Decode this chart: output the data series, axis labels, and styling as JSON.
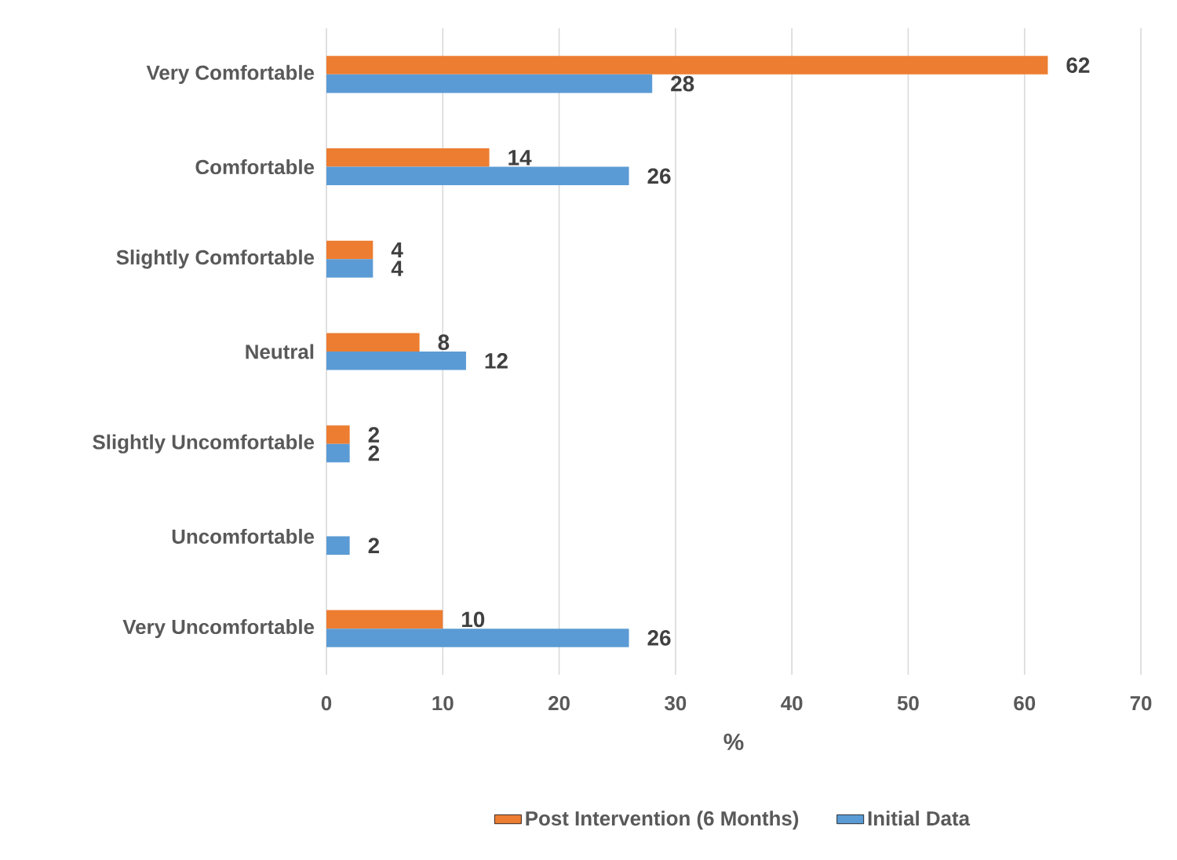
{
  "chart_data": {
    "type": "bar",
    "orientation": "horizontal",
    "xlabel": "%",
    "categories": [
      "Very Comfortable",
      "Comfortable",
      "Slightly Comfortable",
      "Neutral",
      "Slightly Uncomfortable",
      "Uncomfortable",
      "Very Uncomfortable"
    ],
    "series": [
      {
        "name": "Post Intervention (6 Months)",
        "color": "#ed7d31",
        "values": [
          62,
          14,
          4,
          8,
          2,
          null,
          10
        ]
      },
      {
        "name": "Initial Data",
        "color": "#5b9bd5",
        "values": [
          28,
          26,
          4,
          12,
          2,
          2,
          26
        ]
      }
    ],
    "xlim": [
      0,
      70
    ],
    "xticks": [
      0,
      10,
      20,
      30,
      40,
      50,
      60,
      70
    ],
    "grid": "x",
    "legend": "bottom",
    "data_labels": true
  }
}
